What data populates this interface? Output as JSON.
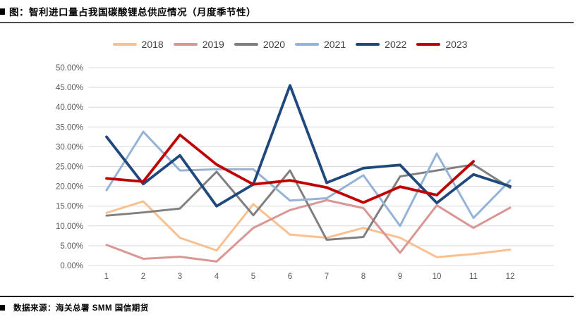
{
  "title": {
    "text": "图：智利进口量占我国碳酸锂总供应情况（月度季节性）"
  },
  "footer": {
    "text": "数据来源：海关总署 SMM 国信期货"
  },
  "chart_data": {
    "type": "line",
    "title": "图：智利进口量占我国碳酸锂总供应情况（月度季节性）",
    "xlabel": "",
    "ylabel": "",
    "x_labels": [
      "1",
      "2",
      "3",
      "4",
      "5",
      "6",
      "7",
      "8",
      "9",
      "10",
      "11",
      "12"
    ],
    "ylim": [
      0,
      50
    ],
    "ytick_step": 5,
    "ytick_labels": [
      "0.00%",
      "5.00%",
      "10.00%",
      "15.00%",
      "20.00%",
      "25.00%",
      "30.00%",
      "35.00%",
      "40.00%",
      "45.00%",
      "50.00%"
    ],
    "grid": "horizontal",
    "grid_color": "#d9d9d9",
    "legend_position": "top",
    "series": [
      {
        "name": "2018",
        "color": "#FAC090",
        "values": [
          13.3,
          16.2,
          7.0,
          3.8,
          15.5,
          7.8,
          7.0,
          9.5,
          7.0,
          2.1,
          2.9,
          4.0
        ]
      },
      {
        "name": "2019",
        "color": "#D99694",
        "values": [
          5.2,
          1.7,
          2.2,
          1.0,
          9.5,
          14.0,
          16.5,
          14.5,
          3.2,
          15.2,
          9.5,
          14.6
        ]
      },
      {
        "name": "2020",
        "color": "#808080",
        "values": [
          12.6,
          13.4,
          14.4,
          23.7,
          12.7,
          24.0,
          6.5,
          7.2,
          22.5,
          24.0,
          25.5,
          19.6
        ]
      },
      {
        "name": "2021",
        "color": "#95B3D7",
        "values": [
          19.0,
          33.8,
          24.0,
          24.3,
          24.3,
          16.4,
          17.0,
          22.8,
          10.0,
          28.3,
          12.0,
          21.5
        ]
      },
      {
        "name": "2022",
        "color": "#1F497D",
        "values": [
          32.5,
          20.6,
          27.8,
          15.0,
          20.5,
          45.5,
          20.9,
          24.6,
          25.4,
          15.8,
          23.0,
          20.0
        ]
      },
      {
        "name": "2023",
        "color": "#C00000",
        "values": [
          22.0,
          21.2,
          33.0,
          25.5,
          20.5,
          21.5,
          19.7,
          15.9,
          19.9,
          17.8,
          26.3
        ]
      }
    ]
  }
}
